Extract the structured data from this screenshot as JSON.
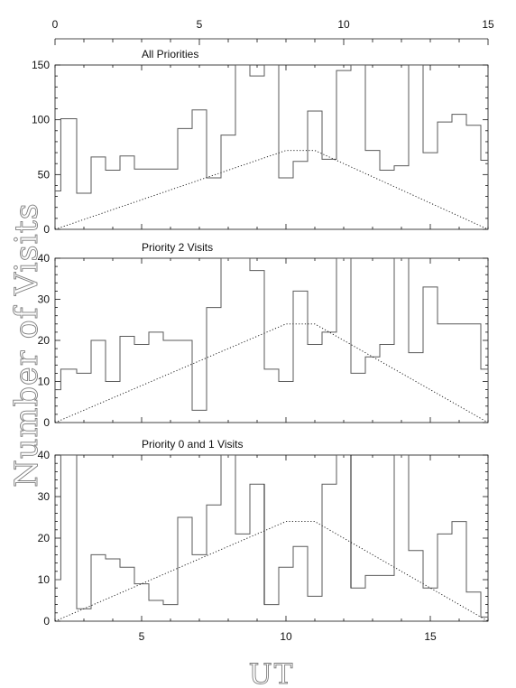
{
  "page": {
    "y_axis_label": "Number of Visits",
    "x_axis_label": "UT"
  },
  "top_axis": {
    "range": [
      0,
      15
    ],
    "ticks": [
      0,
      5,
      10,
      15
    ],
    "tick_labels": [
      "0",
      "5",
      "10",
      "15"
    ]
  },
  "chart_data": [
    {
      "type": "area",
      "title": "All Priorities",
      "xlabel": "UT",
      "ylabel": "Number of Visits",
      "xlim": [
        2,
        17
      ],
      "ylim": [
        0,
        150
      ],
      "grid": false,
      "xticks": [
        5,
        10,
        15
      ],
      "yticks": [
        0,
        50,
        100,
        150
      ],
      "ytick_labels": [
        "0",
        "50",
        "100",
        "150"
      ],
      "series": [
        {
          "style": "step",
          "x": [
            2.0,
            2.2,
            2.75,
            3.25,
            3.75,
            4.25,
            4.75,
            5.25,
            5.75,
            6.25,
            6.75,
            7.25,
            7.75,
            8.25,
            8.75,
            9.25,
            9.75,
            10.25,
            10.75,
            11.25,
            11.75,
            12.25,
            12.75,
            13.25,
            13.75,
            14.25,
            14.75,
            15.25,
            15.75,
            16.25,
            16.75,
            17.0
          ],
          "values": [
            35,
            101,
            33,
            66,
            54,
            67,
            55,
            55,
            55,
            92,
            109,
            47,
            86,
            150,
            140,
            150,
            47,
            62,
            108,
            64,
            145,
            150,
            72,
            54,
            58,
            150,
            70,
            98,
            105,
            95,
            63,
            49
          ]
        },
        {
          "style": "dotted",
          "x": [
            2,
            10,
            11,
            17
          ],
          "values": [
            0,
            72,
            72,
            0
          ]
        }
      ]
    },
    {
      "type": "area",
      "title": "Priority 2 Visits",
      "xlabel": "UT",
      "ylabel": "Number of Visits",
      "xlim": [
        2,
        17
      ],
      "ylim": [
        0,
        40
      ],
      "grid": false,
      "xticks": [
        5,
        10,
        15
      ],
      "yticks": [
        0,
        10,
        20,
        30,
        40
      ],
      "ytick_labels": [
        "0",
        "10",
        "20",
        "30",
        "40"
      ],
      "series": [
        {
          "style": "step",
          "x": [
            2.0,
            2.2,
            2.75,
            3.25,
            3.75,
            4.25,
            4.75,
            5.25,
            5.75,
            6.25,
            6.75,
            7.25,
            7.75,
            8.25,
            8.75,
            9.25,
            9.75,
            10.25,
            10.75,
            11.25,
            11.75,
            12.25,
            12.75,
            13.25,
            13.75,
            14.25,
            14.75,
            15.25,
            15.75,
            16.25,
            16.75,
            17.0
          ],
          "values": [
            8,
            13,
            12,
            20,
            10,
            21,
            19,
            22,
            20,
            20,
            3,
            28,
            40,
            40,
            37,
            13,
            10,
            32,
            19,
            22,
            40,
            12,
            16,
            19,
            40,
            17,
            33,
            24,
            24,
            24,
            13,
            8
          ]
        },
        {
          "style": "dotted",
          "x": [
            2,
            10,
            11,
            17
          ],
          "values": [
            0,
            24,
            24,
            0
          ]
        }
      ]
    },
    {
      "type": "area",
      "title": "Priority 0 and 1 Visits",
      "xlabel": "UT",
      "ylabel": "Number of Visits",
      "xlim": [
        2,
        17
      ],
      "ylim": [
        0,
        40
      ],
      "grid": false,
      "xticks": [
        5,
        10,
        15
      ],
      "xtick_labels": [
        "5",
        "10",
        "15"
      ],
      "yticks": [
        0,
        10,
        20,
        30,
        40
      ],
      "ytick_labels": [
        "0",
        "10",
        "20",
        "30",
        "40"
      ],
      "series": [
        {
          "style": "step",
          "x": [
            2.0,
            2.2,
            2.75,
            3.25,
            3.75,
            4.25,
            4.75,
            5.25,
            5.75,
            6.25,
            6.75,
            7.25,
            7.75,
            8.25,
            8.75,
            9.25,
            9.75,
            10.25,
            10.75,
            11.25,
            11.75,
            12.25,
            12.75,
            13.25,
            13.75,
            14.25,
            14.75,
            15.25,
            15.75,
            16.25,
            16.75,
            17.0
          ],
          "values": [
            10,
            40,
            3,
            16,
            15,
            13,
            9,
            5,
            4,
            25,
            16,
            28,
            40,
            21,
            33,
            4,
            13,
            18,
            6,
            33,
            40,
            8,
            11,
            11,
            40,
            17,
            8,
            21,
            24,
            7,
            1,
            1
          ]
        },
        {
          "style": "dotted",
          "x": [
            2,
            10,
            11,
            17
          ],
          "values": [
            0,
            24,
            24,
            0
          ]
        }
      ]
    }
  ]
}
